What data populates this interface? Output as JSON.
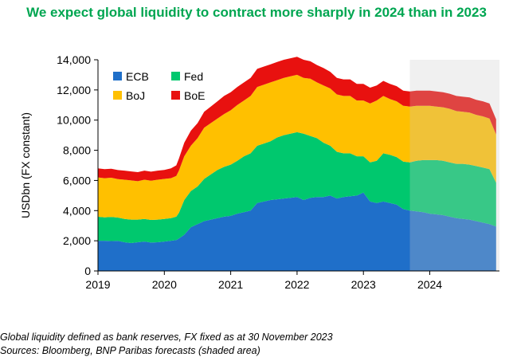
{
  "title": "We expect global liquidity to contract more sharply in 2024 than in 2023",
  "notes": {
    "line1": "Global liquidity defined as bank reserves, FX fixed as at 30 November 2023",
    "line2": "Sources: Bloomberg, BNP Paribas forecasts (shaded area)"
  },
  "chart_data": {
    "type": "area",
    "stacked": true,
    "ylabel": "USDbn (FX constant)",
    "xlabel": "",
    "ylim": [
      0,
      14000
    ],
    "yticks": [
      0,
      2000,
      4000,
      6000,
      8000,
      10000,
      12000,
      14000
    ],
    "ytick_labels": [
      "0",
      "2,000",
      "4,000",
      "6,000",
      "8,000",
      "10,000",
      "12,000",
      "14,000"
    ],
    "xlim": [
      2019.0,
      2025.05
    ],
    "xticks": [
      2019,
      2020,
      2021,
      2022,
      2023,
      2024
    ],
    "xtick_labels": [
      "2019",
      "2020",
      "2021",
      "2022",
      "2023",
      "2024"
    ],
    "forecast_start": 2023.7,
    "forecast_shade_color": "#C8C8C8",
    "legend": {
      "placement": "top-left",
      "columns": 2
    },
    "x": [
      2019.0,
      2019.1,
      2019.2,
      2019.3,
      2019.4,
      2019.5,
      2019.6,
      2019.7,
      2019.8,
      2019.9,
      2020.0,
      2020.1,
      2020.18,
      2020.22,
      2020.3,
      2020.4,
      2020.5,
      2020.6,
      2020.7,
      2020.8,
      2020.9,
      2021.0,
      2021.1,
      2021.2,
      2021.3,
      2021.4,
      2021.5,
      2021.6,
      2021.7,
      2021.8,
      2021.9,
      2022.0,
      2022.1,
      2022.2,
      2022.3,
      2022.4,
      2022.5,
      2022.6,
      2022.7,
      2022.8,
      2022.9,
      2023.0,
      2023.1,
      2023.2,
      2023.3,
      2023.4,
      2023.5,
      2023.6,
      2023.7,
      2023.8,
      2023.9,
      2024.0,
      2024.1,
      2024.2,
      2024.3,
      2024.4,
      2024.5,
      2024.6,
      2024.7,
      2024.8,
      2024.9,
      2025.0
    ],
    "series": [
      {
        "name": "ECB",
        "color": "#1F6FC9",
        "values": [
          2000,
          2000,
          1980,
          1990,
          1900,
          1850,
          1900,
          1950,
          1880,
          1900,
          1950,
          2000,
          2050,
          2150,
          2400,
          2900,
          3100,
          3300,
          3400,
          3500,
          3600,
          3650,
          3800,
          3900,
          4000,
          4500,
          4600,
          4700,
          4750,
          4800,
          4850,
          4900,
          4700,
          4850,
          4900,
          4900,
          5000,
          4800,
          4900,
          4950,
          5000,
          5200,
          4600,
          4500,
          4600,
          4500,
          4400,
          4100,
          4000,
          3950,
          3900,
          3800,
          3750,
          3700,
          3600,
          3500,
          3450,
          3400,
          3300,
          3200,
          3100,
          2950
        ]
      },
      {
        "name": "Fed",
        "color": "#00C86E",
        "values": [
          1600,
          1550,
          1600,
          1550,
          1550,
          1550,
          1500,
          1500,
          1500,
          1500,
          1500,
          1500,
          1550,
          1700,
          2300,
          2400,
          2500,
          2800,
          3000,
          3200,
          3300,
          3400,
          3500,
          3700,
          3800,
          3800,
          3850,
          3900,
          4100,
          4200,
          4250,
          4300,
          4400,
          4100,
          3900,
          3600,
          3300,
          3100,
          2900,
          2850,
          2600,
          2400,
          2600,
          2800,
          3200,
          3200,
          3150,
          3150,
          3200,
          3350,
          3450,
          3550,
          3600,
          3600,
          3600,
          3600,
          3650,
          3650,
          3650,
          3650,
          3650,
          2900
        ]
      },
      {
        "name": "BoJ",
        "color": "#FFC000",
        "values": [
          2600,
          2600,
          2600,
          2550,
          2600,
          2600,
          2550,
          2600,
          2600,
          2650,
          2650,
          2650,
          2700,
          2800,
          2900,
          3000,
          3200,
          3400,
          3400,
          3400,
          3500,
          3600,
          3700,
          3700,
          3800,
          3900,
          3900,
          3900,
          3800,
          3800,
          3800,
          3800,
          3700,
          3800,
          3700,
          3800,
          3800,
          3800,
          3800,
          3800,
          3700,
          3700,
          3900,
          4000,
          3800,
          3700,
          3700,
          3700,
          3700,
          3650,
          3600,
          3600,
          3550,
          3550,
          3550,
          3500,
          3450,
          3450,
          3400,
          3400,
          3350,
          3200
        ]
      },
      {
        "name": "BoE",
        "color": "#E8110F",
        "values": [
          600,
          600,
          600,
          600,
          600,
          600,
          600,
          600,
          600,
          600,
          600,
          650,
          700,
          800,
          900,
          1000,
          1000,
          1050,
          1100,
          1150,
          1200,
          1200,
          1200,
          1200,
          1200,
          1200,
          1200,
          1200,
          1200,
          1200,
          1200,
          1200,
          1200,
          1150,
          1150,
          1150,
          1100,
          1100,
          1100,
          1100,
          1100,
          1100,
          1050,
          1000,
          1000,
          1000,
          1000,
          1000,
          1000,
          1000,
          1000,
          1000,
          1000,
          1000,
          1000,
          1000,
          1000,
          1000,
          1000,
          1000,
          1000,
          1000
        ]
      }
    ]
  }
}
